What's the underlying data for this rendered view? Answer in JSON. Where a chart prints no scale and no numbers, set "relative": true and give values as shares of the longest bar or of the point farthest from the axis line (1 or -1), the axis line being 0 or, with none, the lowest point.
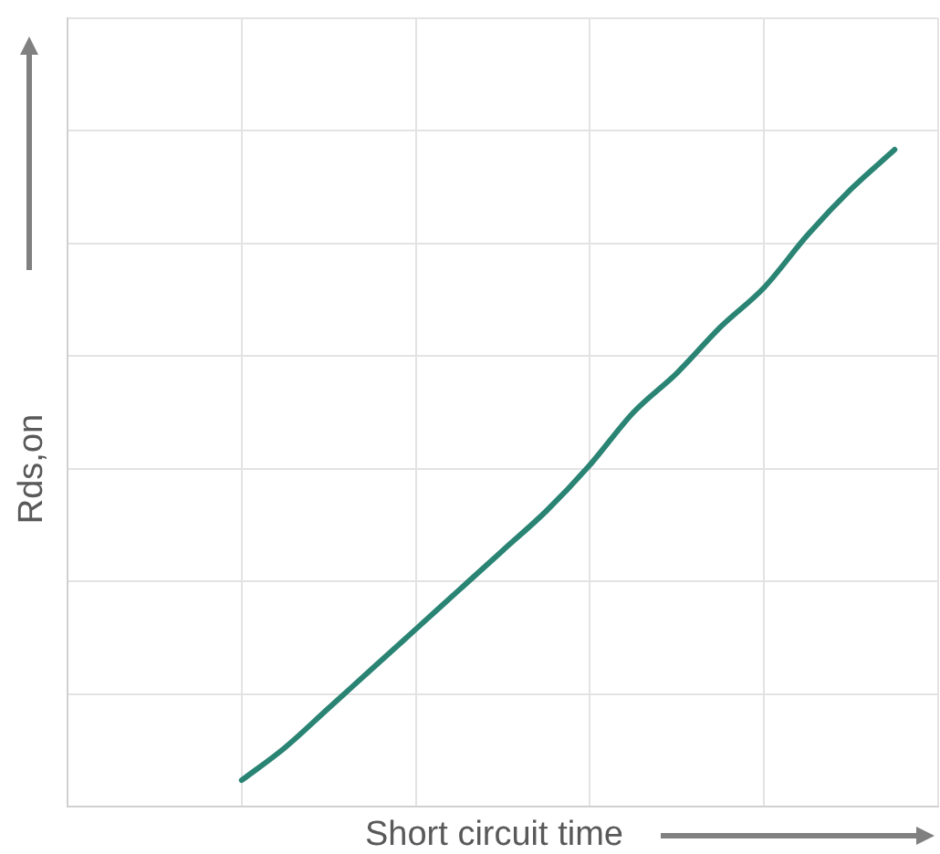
{
  "chart_data": {
    "type": "line",
    "xlabel": "Short circuit time",
    "ylabel": "Rds,on",
    "relative": true,
    "tick_labels": false,
    "grid": true,
    "marker": "none",
    "line_style": "solid",
    "categories": [
      null,
      null,
      null,
      null,
      null,
      null,
      null,
      null,
      null,
      null,
      null,
      null,
      null,
      null,
      null,
      null,
      null,
      null,
      null,
      null,
      null
    ],
    "series": [
      {
        "color": "#2a8474",
        "values": [
          null,
          null,
          null,
          null,
          0.04,
          0.09,
          0.15,
          0.21,
          0.27,
          0.33,
          0.39,
          0.45,
          0.52,
          0.6,
          0.66,
          0.73,
          0.79,
          0.87,
          0.94,
          1,
          null
        ]
      }
    ]
  }
}
